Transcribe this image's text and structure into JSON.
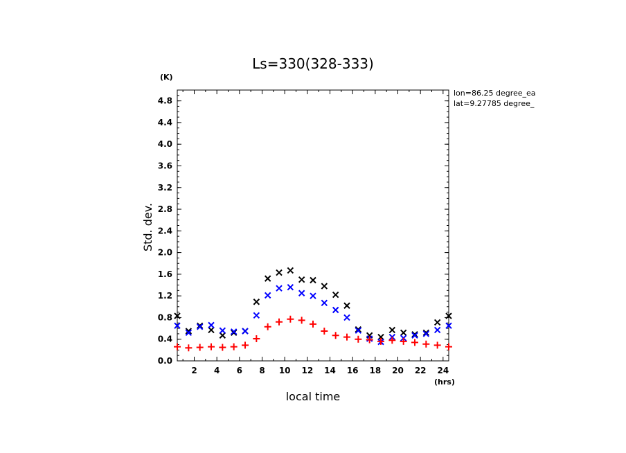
{
  "chart_data": {
    "type": "scatter",
    "title": "Ls=330(328-333)",
    "xlabel": "local time",
    "ylabel": "Std. dev.",
    "x_unit": "(hrs)",
    "y_unit": "(K)",
    "xlim": [
      0.5,
      24.5
    ],
    "ylim": [
      0,
      5.0
    ],
    "x_ticks": [
      2,
      4,
      6,
      8,
      10,
      12,
      14,
      16,
      18,
      20,
      22,
      24
    ],
    "y_ticks": [
      0.0,
      0.4,
      0.8,
      1.2,
      1.6,
      2.0,
      2.4,
      2.8,
      3.2,
      3.6,
      4.0,
      4.4,
      4.8
    ],
    "y_tick_labels": [
      "0.0",
      "0.4",
      "0.8",
      "1.2",
      "1.6",
      "2.0",
      "2.4",
      "2.8",
      "3.2",
      "3.6",
      "4.0",
      "4.4",
      "4.8"
    ],
    "annotations": [
      "lon=86.25 degree_ea",
      "lat=9.27785 degree_"
    ],
    "x": [
      0.5,
      1.5,
      2.5,
      3.5,
      4.5,
      5.5,
      6.5,
      7.5,
      8.5,
      9.5,
      10.5,
      11.5,
      12.5,
      13.5,
      14.5,
      15.5,
      16.5,
      17.5,
      18.5,
      19.5,
      20.5,
      21.5,
      22.5,
      23.5,
      24.5
    ],
    "series": [
      {
        "marker": "x",
        "color": "#000000",
        "values": [
          0.83,
          0.55,
          0.65,
          0.57,
          0.47,
          0.52,
          0.55,
          1.09,
          1.52,
          1.63,
          1.67,
          1.5,
          1.49,
          1.38,
          1.22,
          1.02,
          0.58,
          0.47,
          0.44,
          0.57,
          0.52,
          0.49,
          0.52,
          0.71,
          0.83
        ]
      },
      {
        "marker": "x",
        "color": "#0000ff",
        "values": [
          0.65,
          0.52,
          0.63,
          0.66,
          0.56,
          0.54,
          0.55,
          0.84,
          1.21,
          1.34,
          1.36,
          1.25,
          1.2,
          1.07,
          0.94,
          0.8,
          0.56,
          0.41,
          0.35,
          0.44,
          0.42,
          0.47,
          0.5,
          0.57,
          0.65
        ]
      },
      {
        "marker": "plus",
        "color": "#ff0000",
        "values": [
          0.26,
          0.24,
          0.25,
          0.26,
          0.25,
          0.26,
          0.29,
          0.41,
          0.63,
          0.72,
          0.77,
          0.75,
          0.68,
          0.55,
          0.47,
          0.44,
          0.4,
          0.39,
          0.36,
          0.38,
          0.36,
          0.34,
          0.31,
          0.29,
          0.26
        ]
      }
    ]
  }
}
